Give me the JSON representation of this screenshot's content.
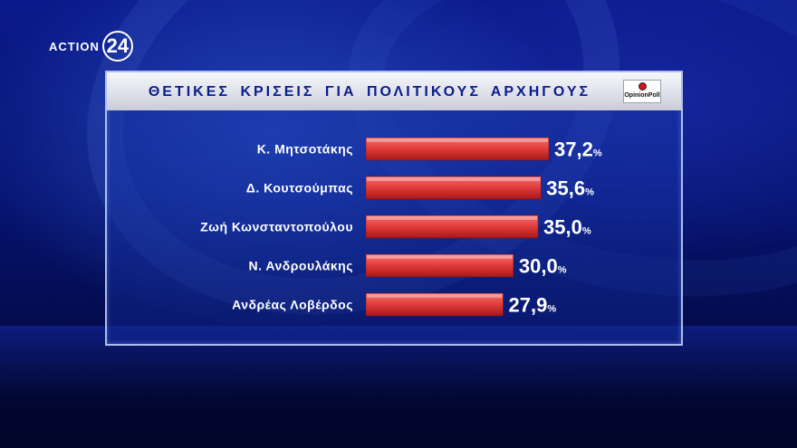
{
  "logo": {
    "brand": "ACTION",
    "number": "24"
  },
  "poll_logo": {
    "text": "OpinionPoll"
  },
  "colors": {
    "bar": "#e03a3a",
    "bar_dark": "#a81818",
    "title": "#0b1d8c"
  },
  "chart_data": {
    "type": "bar",
    "orientation": "horizontal",
    "title": "ΘΕΤΙΚΕΣ ΚΡΙΣΕΙΣ ΓΙΑ ΠΟΛΙΤΙΚΟΥΣ ΑΡΧΗΓΟΥΣ",
    "categories": [
      "Κ. Μητσοτάκης",
      "Δ. Κουτσούμπας",
      "Ζωή Κωνσταντοπούλου",
      "Ν. Ανδρουλάκης",
      "Ανδρέας Λοβέρδος"
    ],
    "values": [
      37.2,
      35.6,
      35.0,
      30.0,
      27.9
    ],
    "value_labels": [
      "37,2",
      "35,6",
      "35,0",
      "30,0",
      "27,9"
    ],
    "unit": "%",
    "xlim": [
      0,
      37.2
    ]
  }
}
